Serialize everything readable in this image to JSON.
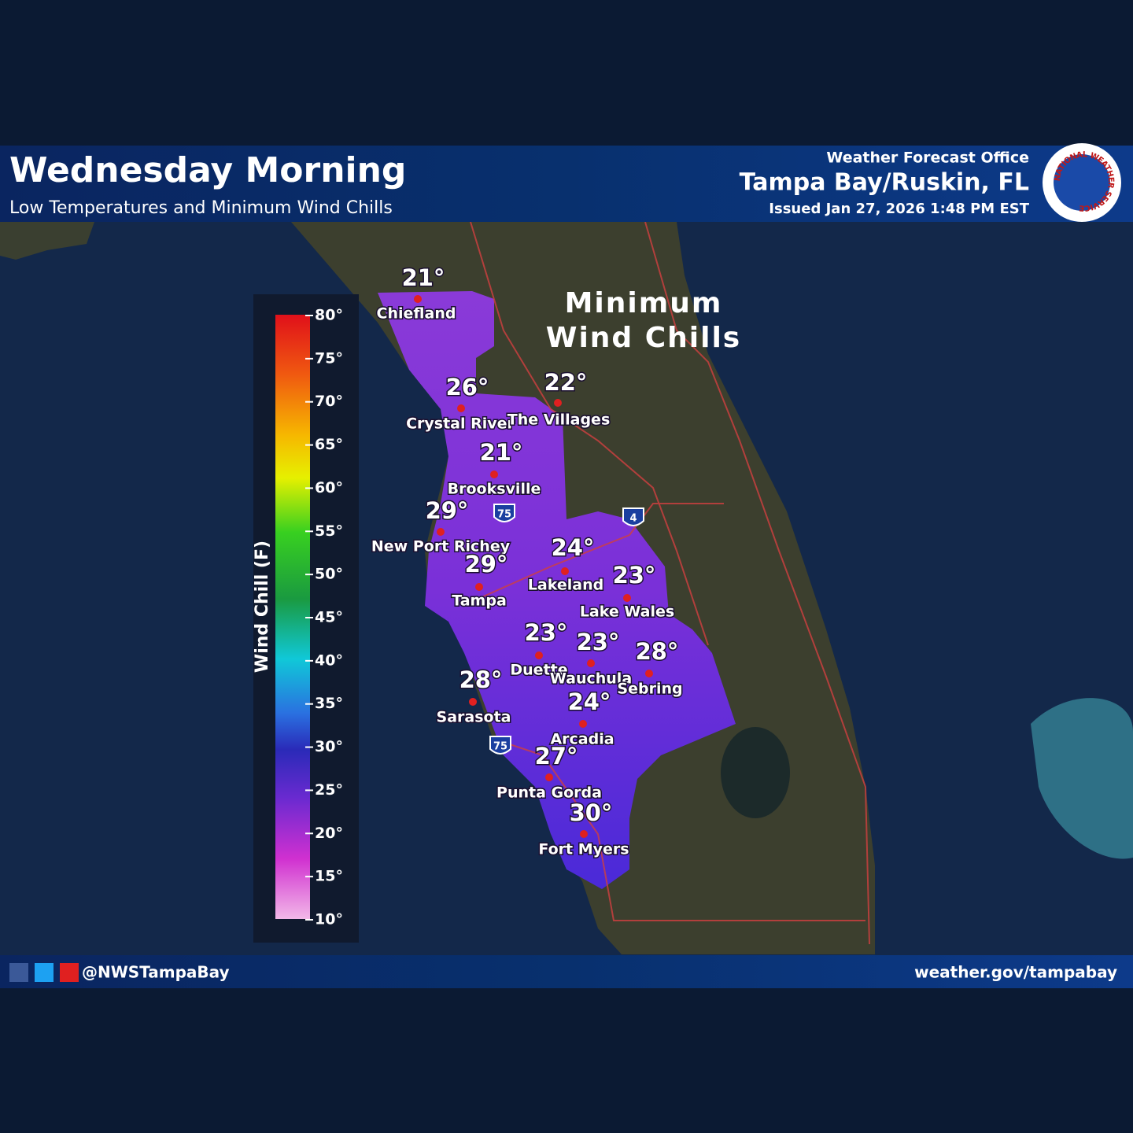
{
  "header": {
    "title": "Wednesday Morning",
    "subtitle": "Low Temperatures and Minimum Wind Chills",
    "office": "Weather Forecast Office",
    "location": "Tampa Bay/Ruskin, FL",
    "issued": "Issued Jan 27, 2026 1:48 PM EST",
    "logo": "NATIONAL WEATHER SERVICE"
  },
  "map": {
    "heading": [
      "Minimum",
      "Wind Chills"
    ],
    "cities": [
      {
        "name": "Chiefland",
        "value": "21°"
      },
      {
        "name": "Crystal River",
        "value": "26°"
      },
      {
        "name": "The Villages",
        "value": "22°"
      },
      {
        "name": "Brooksville",
        "value": "21°"
      },
      {
        "name": "New Port Richey",
        "value": "29°"
      },
      {
        "name": "Tampa",
        "value": "29°"
      },
      {
        "name": "Lakeland",
        "value": "24°"
      },
      {
        "name": "Lake Wales",
        "value": "23°"
      },
      {
        "name": "Duette",
        "value": "23°"
      },
      {
        "name": "Wauchula",
        "value": "23°"
      },
      {
        "name": "Sebring",
        "value": "28°"
      },
      {
        "name": "Sarasota",
        "value": "28°"
      },
      {
        "name": "Arcadia",
        "value": "24°"
      },
      {
        "name": "Punta Gorda",
        "value": "27°"
      },
      {
        "name": "Fort Myers",
        "value": "30°"
      }
    ],
    "highways": [
      "75",
      "75",
      "4"
    ]
  },
  "legend": {
    "title": "Wind Chill (F)",
    "ticks": [
      "80°",
      "75°",
      "70°",
      "65°",
      "60°",
      "55°",
      "50°",
      "45°",
      "40°",
      "35°",
      "30°",
      "25°",
      "20°",
      "15°",
      "10°"
    ]
  },
  "footer": {
    "handle": "@NWSTampaBay",
    "url": "weather.gov/tampabay"
  }
}
